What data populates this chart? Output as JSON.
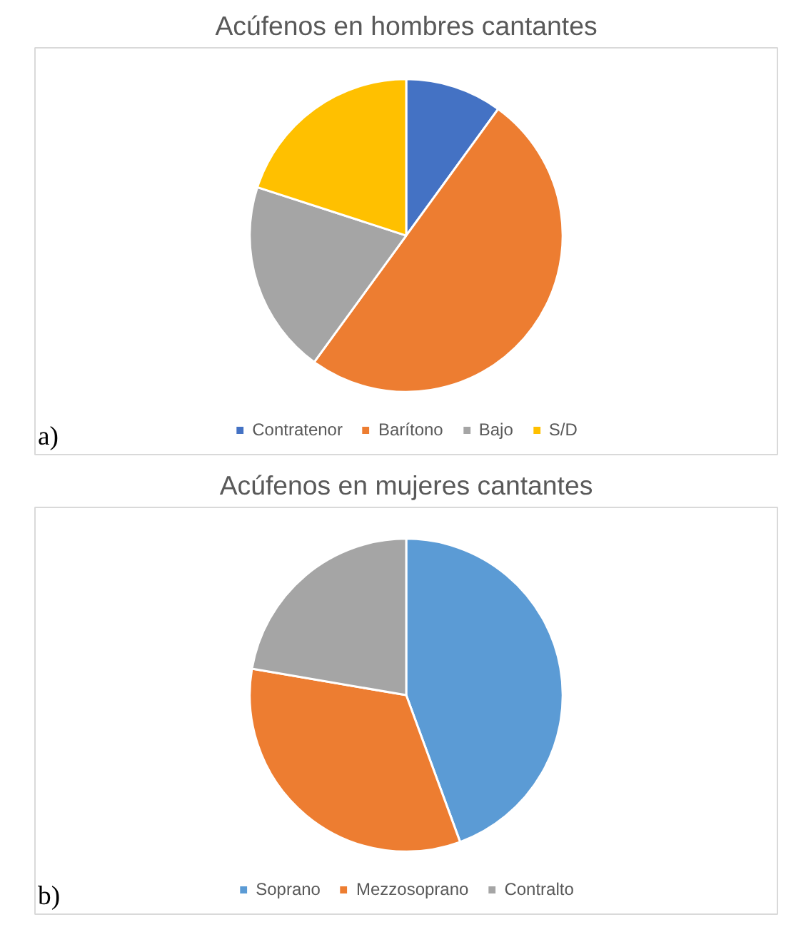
{
  "chart_data": [
    {
      "type": "pie",
      "title": "Acúfenos en hombres cantantes",
      "categories": [
        "Contratenor",
        "Barítono",
        "Bajo",
        "S/D"
      ],
      "values": [
        10,
        50,
        20,
        20
      ],
      "colors": [
        "#4472c4",
        "#ed7d31",
        "#a5a5a5",
        "#ffc000"
      ],
      "legend": "bottom",
      "annotations": [
        "a)"
      ]
    },
    {
      "type": "pie",
      "title": "Acúfenos en mujeres cantantes",
      "categories": [
        "Soprano",
        "Mezzosoprano",
        "Contralto"
      ],
      "values": [
        44.4,
        33.3,
        22.3
      ],
      "colors": [
        "#5b9bd5",
        "#ed7d31",
        "#a5a5a5"
      ],
      "legend": "bottom",
      "annotations": [
        "b)"
      ]
    }
  ]
}
